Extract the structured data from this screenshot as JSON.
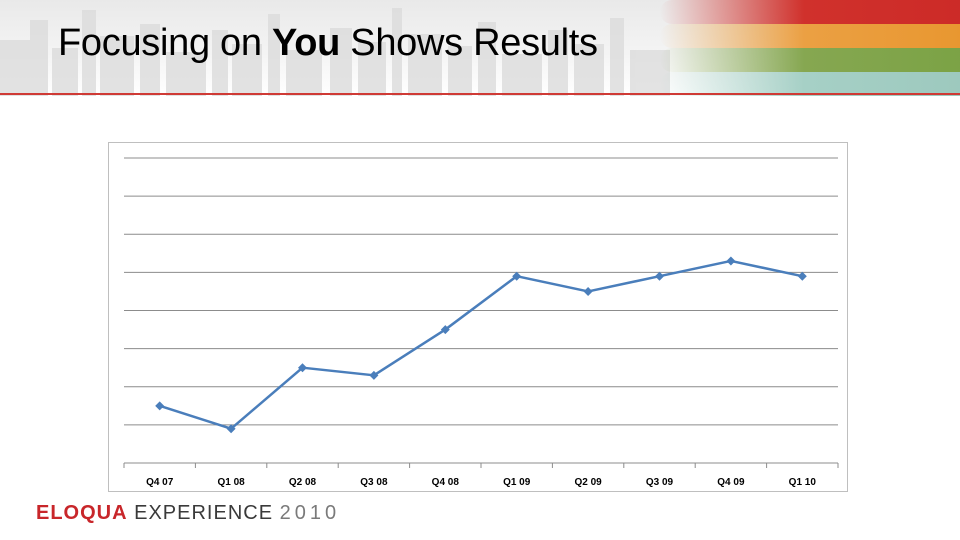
{
  "slide": {
    "title_pre": "Focusing on ",
    "title_bold": "You",
    "title_post": " Shows Results"
  },
  "footer": {
    "brand": "ELOQUA",
    "event": "EXPERIENCE",
    "year": "2010"
  },
  "colors": {
    "line": "#4a7ebb",
    "grid": "#8c8c8c",
    "header_rule": "#cf3a35",
    "footer_brand": "#c8262a"
  },
  "chart_data": {
    "type": "line",
    "categories": [
      "Q4 07",
      "Q1 08",
      "Q2 08",
      "Q3 08",
      "Q4 08",
      "Q1 09",
      "Q2 09",
      "Q3 09",
      "Q4 09",
      "Q1 10"
    ],
    "series": [
      {
        "values": [
          1.5,
          0.9,
          2.5,
          2.3,
          3.5,
          4.9,
          4.5,
          4.9,
          5.3,
          4.9
        ]
      }
    ],
    "ylim": [
      0,
      8
    ],
    "gridlines": 8,
    "grid": true,
    "legend": "none",
    "title": "",
    "xlabel": "",
    "ylabel": ""
  }
}
